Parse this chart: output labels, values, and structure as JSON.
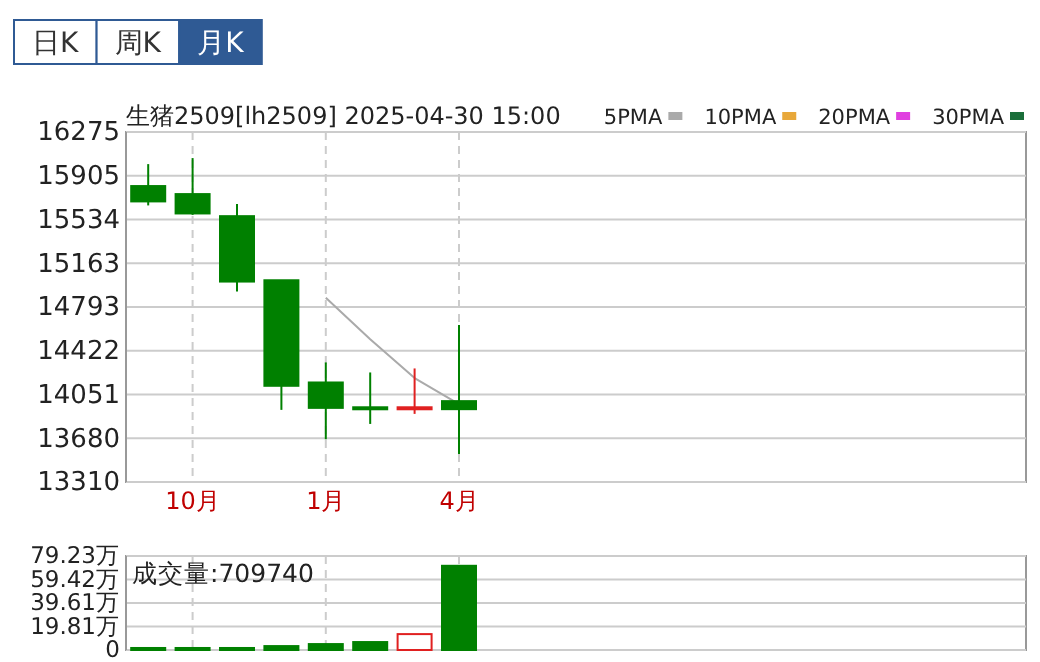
{
  "chart_data": [
    {
      "type": "candlestick",
      "title": "生猪2509[lh2509] 2025-04-30 15:00",
      "annotations": [
        "日K",
        "周K",
        "月K"
      ],
      "categories": [
        null,
        "10月",
        null,
        null,
        "1月",
        null,
        null,
        "4月"
      ],
      "ohlc": [
        [
          15817,
          16003,
          15653,
          15687
        ],
        [
          15749,
          16054,
          15573,
          15585
        ],
        [
          15562,
          15664,
          14923,
          15008
        ],
        [
          15019,
          15019,
          13921,
          14125
        ],
        [
          14153,
          14323,
          13672,
          13938
        ],
        [
          13943,
          14238,
          13802,
          13932
        ],
        [
          13932,
          14272,
          13887,
          13943
        ],
        [
          13995,
          14640,
          13548,
          13927
        ]
      ],
      "colors": [
        "#008000",
        "#008000",
        "#008000",
        "#008000",
        "#008000",
        "#008000",
        "#e02020",
        "#008000"
      ],
      "series": [
        {
          "type": "line",
          "name": "5PMA",
          "color": "#aaaaaa",
          "values": [
            null,
            null,
            null,
            null,
            14870,
            14520,
            14190,
            13970
          ]
        },
        {
          "type": "line",
          "name": "10PMA",
          "color": "#e8a83a",
          "values": [
            null,
            null,
            null,
            null,
            null,
            null,
            null,
            null
          ]
        },
        {
          "type": "line",
          "name": "20PMA",
          "color": "#e040e0",
          "values": [
            null,
            null,
            null,
            null,
            null,
            null,
            null,
            null
          ]
        },
        {
          "type": "line",
          "name": "30PMA",
          "color": "#1a6e3a",
          "values": [
            null,
            null,
            null,
            null,
            null,
            null,
            null,
            null
          ]
        }
      ],
      "ylim": [
        13310,
        16275
      ],
      "yticks": [
        13310,
        13680,
        14051,
        14422,
        14793,
        15163,
        15534,
        15905,
        16275
      ],
      "grid": true,
      "legend": "top right"
    },
    {
      "type": "bar",
      "title": "成交量:709740",
      "categories": [
        null,
        null,
        null,
        null,
        null,
        null,
        null,
        null
      ],
      "values": [
        1.7,
        1.7,
        1.7,
        3.3,
        5,
        6.7,
        13.4,
        70.974
      ],
      "colors": [
        "#008000",
        "#008000",
        "#008000",
        "#008000",
        "#008000",
        "#008000",
        "#e02020",
        "#008000"
      ],
      "ylim": [
        0,
        79.23
      ],
      "yticks": [
        0,
        {
          "value": 19.81,
          "label": "19.81万"
        },
        {
          "value": 39.61,
          "label": "39.61万"
        },
        {
          "value": 59.42,
          "label": "59.42万"
        },
        {
          "value": 79.23,
          "label": "79.23万"
        }
      ],
      "grid": true,
      "tick_labels": "y"
    }
  ]
}
